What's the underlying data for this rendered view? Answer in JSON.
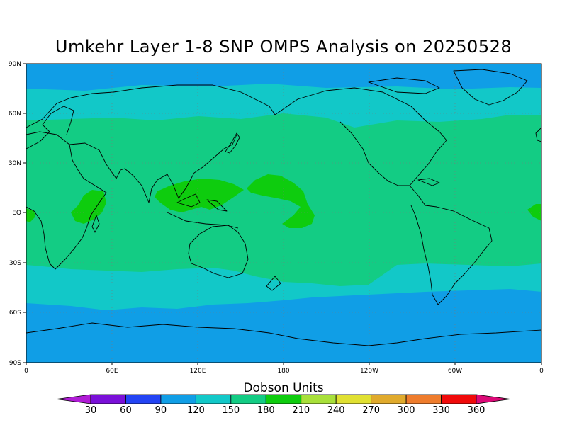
{
  "title": "Umkehr Layer 1-8 SNP OMPS Analysis on 20250528",
  "lat_labels": [
    "90N",
    "60N",
    "30N",
    "EQ",
    "30S",
    "60S",
    "90S"
  ],
  "lon_labels": [
    "0",
    "60E",
    "120E",
    "180",
    "120W",
    "60W",
    "0"
  ],
  "colorbar": {
    "title": "Dobson Units",
    "labels": [
      "30",
      "60",
      "90",
      "120",
      "150",
      "180",
      "210",
      "240",
      "270",
      "300",
      "330",
      "360"
    ],
    "colors": [
      "#b01cd6",
      "#7a10d8",
      "#2344f4",
      "#109ee6",
      "#12c8c8",
      "#13cc84",
      "#0ecc0e",
      "#a8e03a",
      "#e0e032",
      "#e0aa2c",
      "#ee7c2c",
      "#f00a0a",
      "#dc0a78"
    ]
  },
  "map_colors": {
    "band_90": "#109ee6",
    "band_120": "#12c8c8",
    "band_150": "#13cc84",
    "band_180": "#0ecc0e",
    "coast": "#000000",
    "grid": "#7a7a7a"
  }
}
